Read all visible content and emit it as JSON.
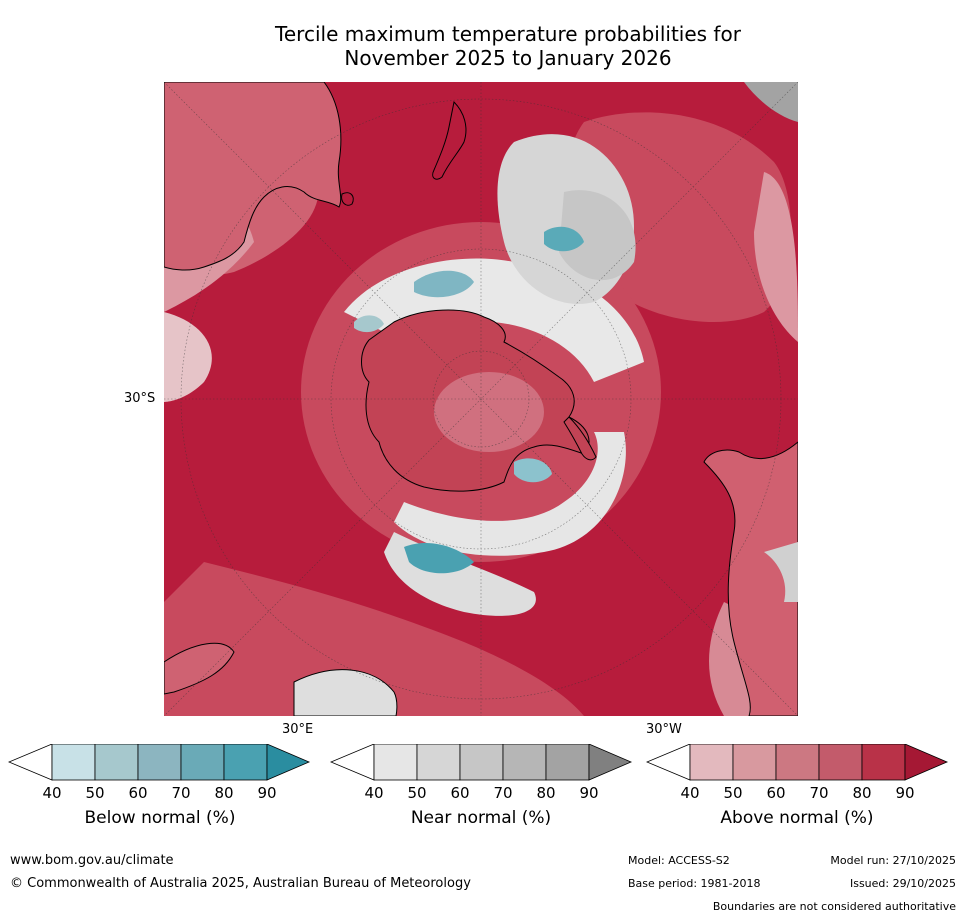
{
  "title_line1": "Tercile maximum temperature probabilities for",
  "title_line2": "November 2025 to January 2026",
  "map": {
    "lat_label": "30°S",
    "lon_label_e": "30°E",
    "lon_label_w": "30°W",
    "colors": {
      "ocean_above": "#b71c3c",
      "mid_red": "#c84a5e",
      "light_red": "#e2a8b0",
      "near_normal": "#cfcfcf",
      "below_normal": "#5aaab8",
      "coast": "#000000"
    }
  },
  "legends": [
    {
      "label": "Below normal (%)",
      "ticks": [
        "40",
        "50",
        "60",
        "70",
        "80",
        "90"
      ],
      "colors": [
        "#ffffff",
        "#c8e1e7",
        "#a6c8cd",
        "#8cb5c0",
        "#6aaab7",
        "#4aa1b1",
        "#2a8da0"
      ]
    },
    {
      "label": "Near normal (%)",
      "ticks": [
        "40",
        "50",
        "60",
        "70",
        "80",
        "90"
      ],
      "colors": [
        "#ffffff",
        "#e6e6e6",
        "#d6d6d6",
        "#c6c6c6",
        "#b6b6b6",
        "#a3a3a3",
        "#808080"
      ]
    },
    {
      "label": "Above normal (%)",
      "ticks": [
        "40",
        "50",
        "60",
        "70",
        "80",
        "90"
      ],
      "colors": [
        "#ffffff",
        "#e3b9be",
        "#d8999f",
        "#cc7882",
        "#c35b6b",
        "#b93248",
        "#a51834"
      ]
    }
  ],
  "footer": {
    "website": "www.bom.gov.au/climate",
    "copyright": "© Commonwealth of Australia 2025, Australian Bureau of Meteorology",
    "model": "Model: ACCESS-S2",
    "base_period": "Base period: 1981-2018",
    "model_run": "Model run: 27/10/2025",
    "issued": "Issued: 29/10/2025",
    "disclaimer": "Boundaries are not considered authoritative"
  }
}
